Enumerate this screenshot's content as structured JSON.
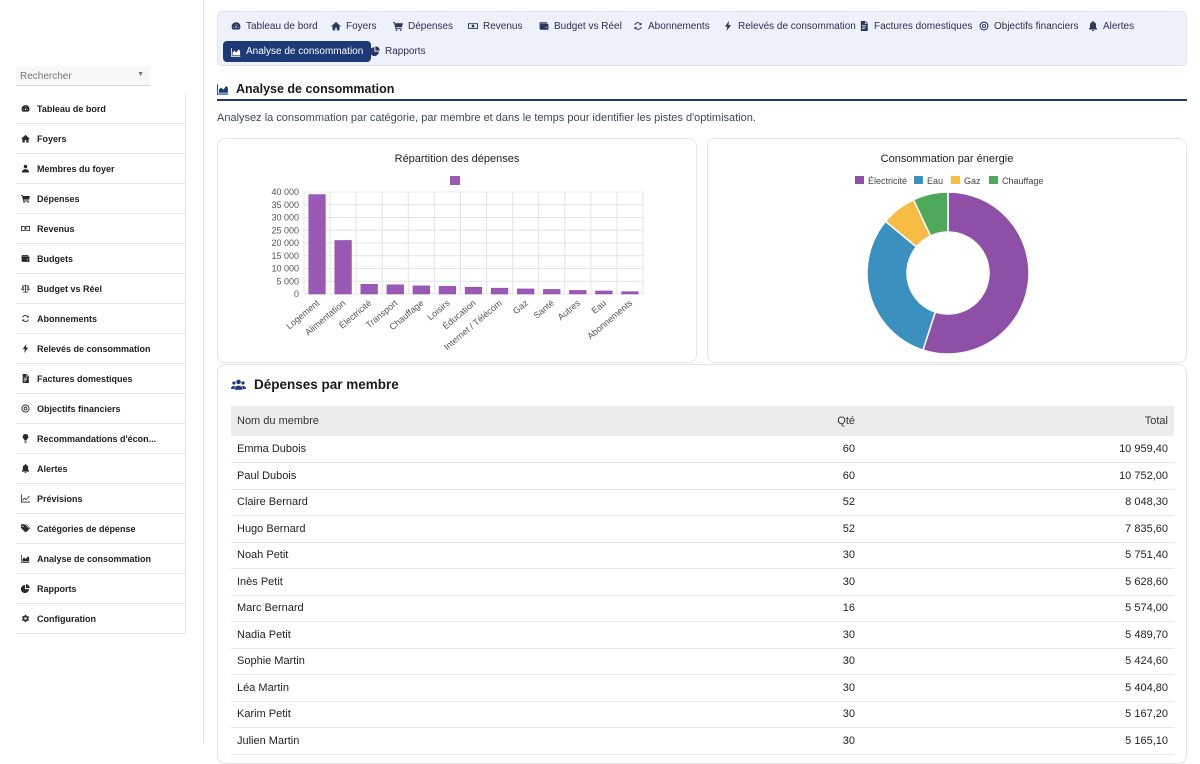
{
  "sidebar": {
    "search_placeholder": "Rechercher",
    "items": [
      {
        "label": "Tableau de bord",
        "icon": "dashboard-icon"
      },
      {
        "label": "Foyers",
        "icon": "home-icon"
      },
      {
        "label": "Membres du foyer",
        "icon": "user-icon"
      },
      {
        "label": "Dépenses",
        "icon": "cart-icon"
      },
      {
        "label": "Revenus",
        "icon": "money-icon"
      },
      {
        "label": "Budgets",
        "icon": "wallet-icon"
      },
      {
        "label": "Budget vs Réel",
        "icon": "balance-icon"
      },
      {
        "label": "Abonnements",
        "icon": "refresh-icon"
      },
      {
        "label": "Relevés de consommation",
        "icon": "bolt-icon"
      },
      {
        "label": "Factures domestiques",
        "icon": "invoice-icon"
      },
      {
        "label": "Objectifs financiers",
        "icon": "target-icon"
      },
      {
        "label": "Recommandations d'écon...",
        "icon": "lightbulb-icon"
      },
      {
        "label": "Alertes",
        "icon": "bell-icon"
      },
      {
        "label": "Prévisions",
        "icon": "line-chart-icon"
      },
      {
        "label": "Catégories de dépense",
        "icon": "tags-icon"
      },
      {
        "label": "Analyse de consommation",
        "icon": "area-chart-icon"
      },
      {
        "label": "Rapports",
        "icon": "pie-chart-icon"
      },
      {
        "label": "Configuration",
        "icon": "gear-icon"
      }
    ]
  },
  "topnav": {
    "items": [
      {
        "label": "Tableau de bord",
        "icon": "dashboard-icon"
      },
      {
        "label": "Foyers",
        "icon": "home-icon"
      },
      {
        "label": "Dépenses",
        "icon": "cart-icon"
      },
      {
        "label": "Revenus",
        "icon": "money-icon"
      },
      {
        "label": "Budget vs Réel",
        "icon": "wallet-icon"
      },
      {
        "label": "Abonnements",
        "icon": "refresh-icon"
      },
      {
        "label": "Relevés de consommation",
        "icon": "bolt-icon"
      },
      {
        "label": "Factures domestiques",
        "icon": "invoice-icon"
      },
      {
        "label": "Objectifs financiers",
        "icon": "target-icon"
      },
      {
        "label": "Alertes",
        "icon": "bell-icon"
      },
      {
        "label": "Analyse de consommation",
        "icon": "area-chart-icon",
        "active": true
      },
      {
        "label": "Rapports",
        "icon": "pie-chart-icon"
      }
    ]
  },
  "page": {
    "title": "Analyse de consommation",
    "description": "Analysez la consommation par catégorie, par membre et dans le temps pour identifier les pistes d'optimisation."
  },
  "chart_data": [
    {
      "type": "bar",
      "title": "Répartition des dépenses",
      "categories": [
        "Logement",
        "Alimentation",
        "Électricité",
        "Transport",
        "Chauffage",
        "Loisirs",
        "Éducation",
        "Internet / Télécom",
        "Gaz",
        "Santé",
        "Autres",
        "Eau",
        "Abonnements"
      ],
      "series": [
        {
          "values": [
            39000,
            21000,
            3800,
            3600,
            3200,
            3000,
            2700,
            2300,
            2000,
            1800,
            1400,
            1200,
            900
          ]
        }
      ],
      "color": "#9b59b6",
      "ylim": [
        0,
        40000
      ],
      "yticks": [
        "0",
        "5 000",
        "10 000",
        "15 000",
        "20 000",
        "25 000",
        "30 000",
        "35 000",
        "40 000"
      ],
      "grid": true,
      "legend": "top"
    },
    {
      "type": "pie",
      "title": "Consommation par énergie",
      "labels": [
        "Électricité",
        "Eau",
        "Gaz",
        "Chauffage"
      ],
      "values": [
        55,
        31,
        7,
        7
      ],
      "colors": [
        "#8e4fa6",
        "#3a91bf",
        "#f6bb42",
        "#4eaa5a"
      ],
      "legend": "top"
    }
  ],
  "members": {
    "title": "Dépenses par membre",
    "columns": {
      "name": "Nom du membre",
      "qty": "Qté",
      "total": "Total"
    },
    "rows": [
      {
        "name": "Emma Dubois",
        "qty": "60",
        "total": "10 959,40"
      },
      {
        "name": "Paul Dubois",
        "qty": "60",
        "total": "10 752,00"
      },
      {
        "name": "Claire Bernard",
        "qty": "52",
        "total": "8 048,30"
      },
      {
        "name": "Hugo Bernard",
        "qty": "52",
        "total": "7 835,60"
      },
      {
        "name": "Noah Petit",
        "qty": "30",
        "total": "5 751,40"
      },
      {
        "name": "Inès Petit",
        "qty": "30",
        "total": "5 628,60"
      },
      {
        "name": "Marc Bernard",
        "qty": "16",
        "total": "5 574,00"
      },
      {
        "name": "Nadia Petit",
        "qty": "30",
        "total": "5 489,70"
      },
      {
        "name": "Sophie Martin",
        "qty": "30",
        "total": "5 424,60"
      },
      {
        "name": "Léa Martin",
        "qty": "30",
        "total": "5 404,80"
      },
      {
        "name": "Karim Petit",
        "qty": "30",
        "total": "5 167,20"
      },
      {
        "name": "Julien Martin",
        "qty": "30",
        "total": "5 165,10"
      }
    ]
  }
}
